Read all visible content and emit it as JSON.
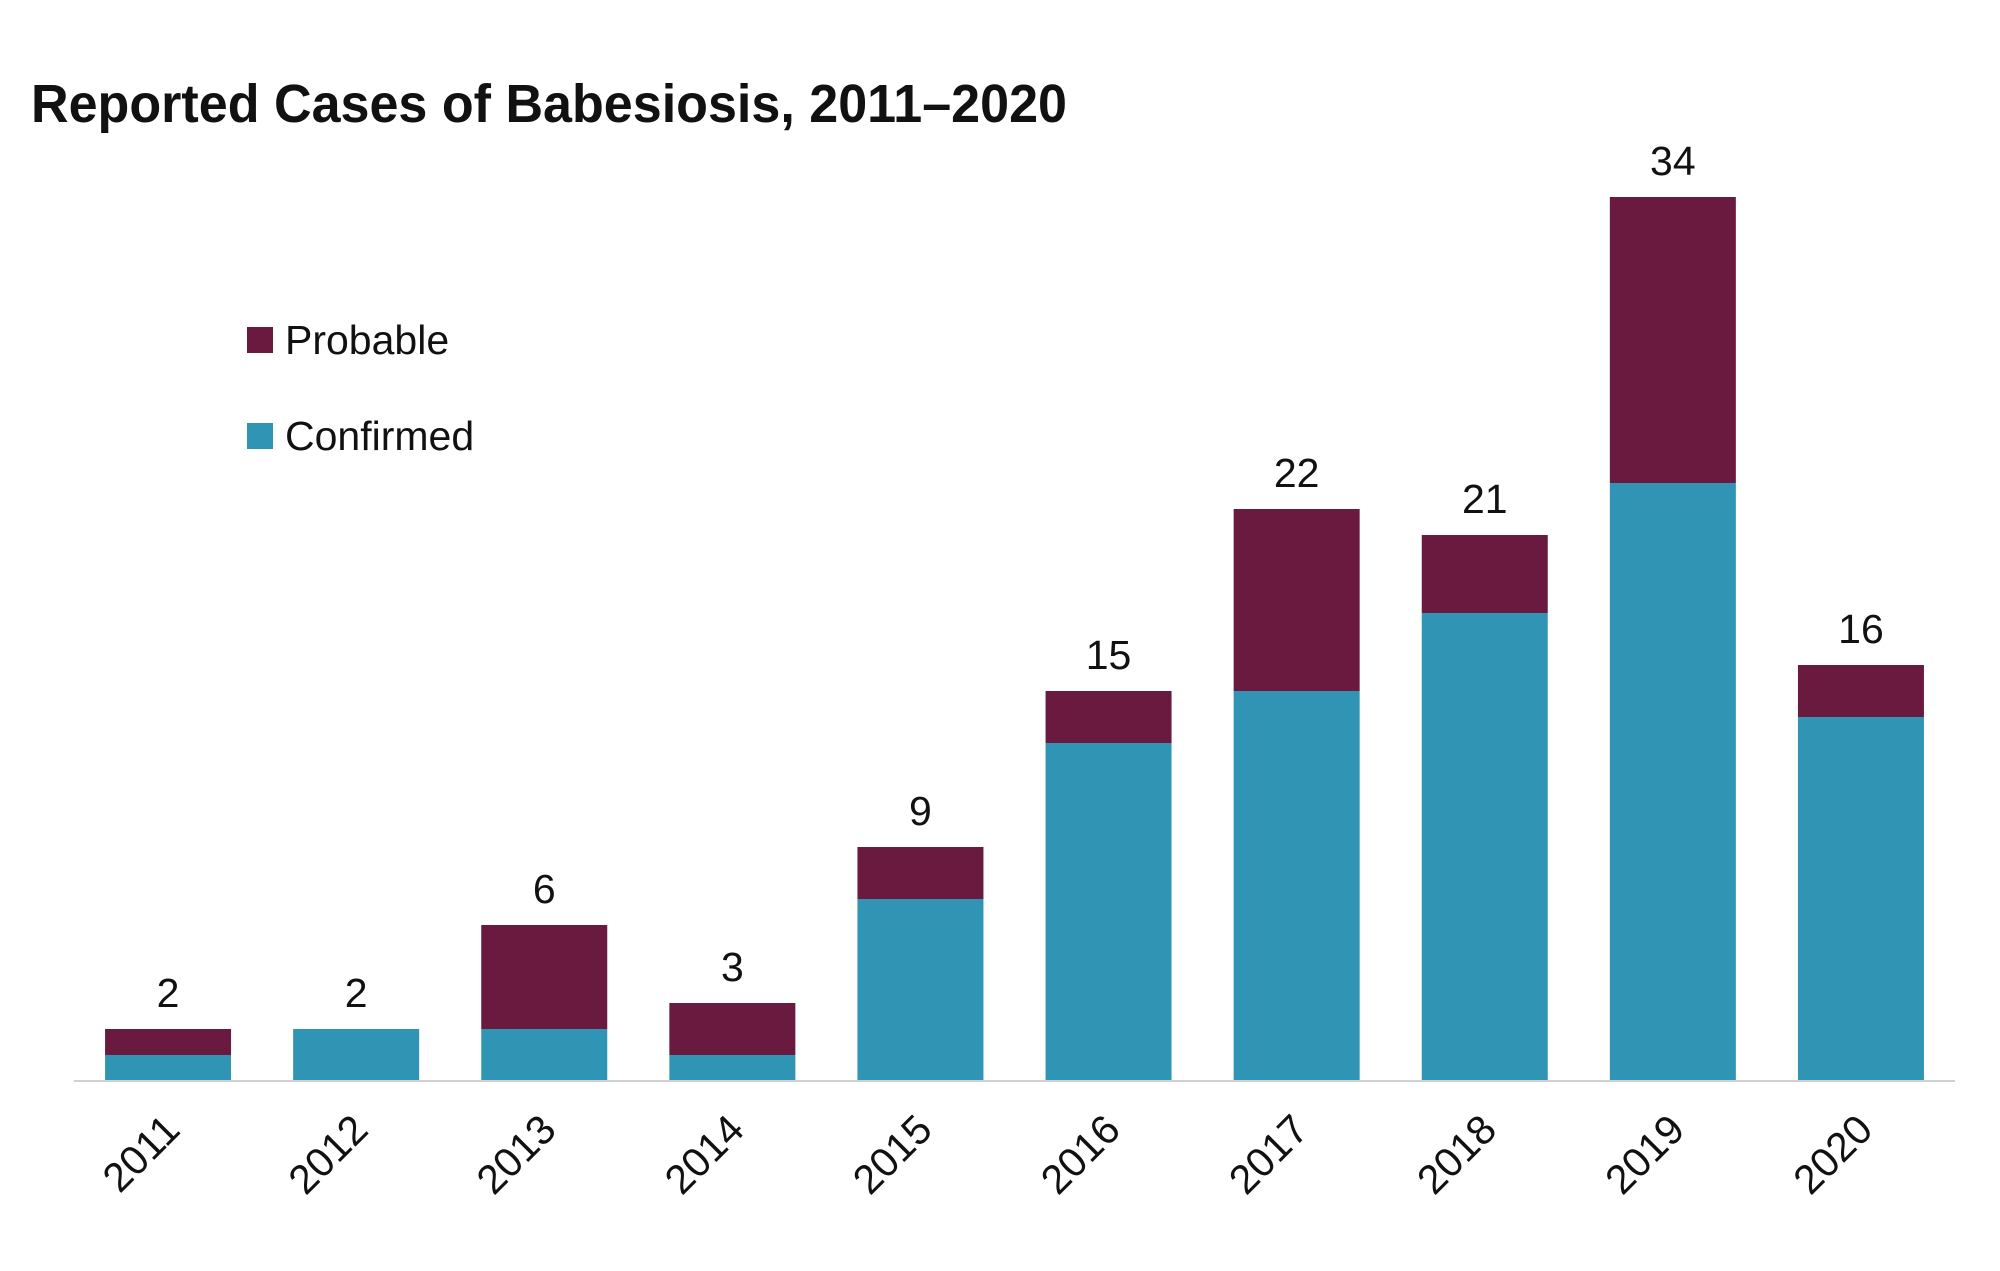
{
  "chart_data": {
    "type": "stacked-bar",
    "title": "Reported Cases of Babesiosis, 2011–2020",
    "categories": [
      "2011",
      "2012",
      "2013",
      "2014",
      "2015",
      "2016",
      "2017",
      "2018",
      "2019",
      "2020"
    ],
    "series": [
      {
        "name": "Confirmed",
        "color": "#3095b4",
        "values": [
          1,
          2,
          2,
          1,
          7,
          13,
          15,
          18,
          23,
          14
        ]
      },
      {
        "name": "Probable",
        "color": "#6b1a3f",
        "values": [
          1,
          0,
          4,
          2,
          2,
          2,
          7,
          3,
          11,
          2
        ]
      }
    ],
    "totals": [
      2,
      2,
      6,
      3,
      9,
      15,
      22,
      21,
      34,
      16
    ],
    "ylim": [
      0,
      34
    ]
  }
}
